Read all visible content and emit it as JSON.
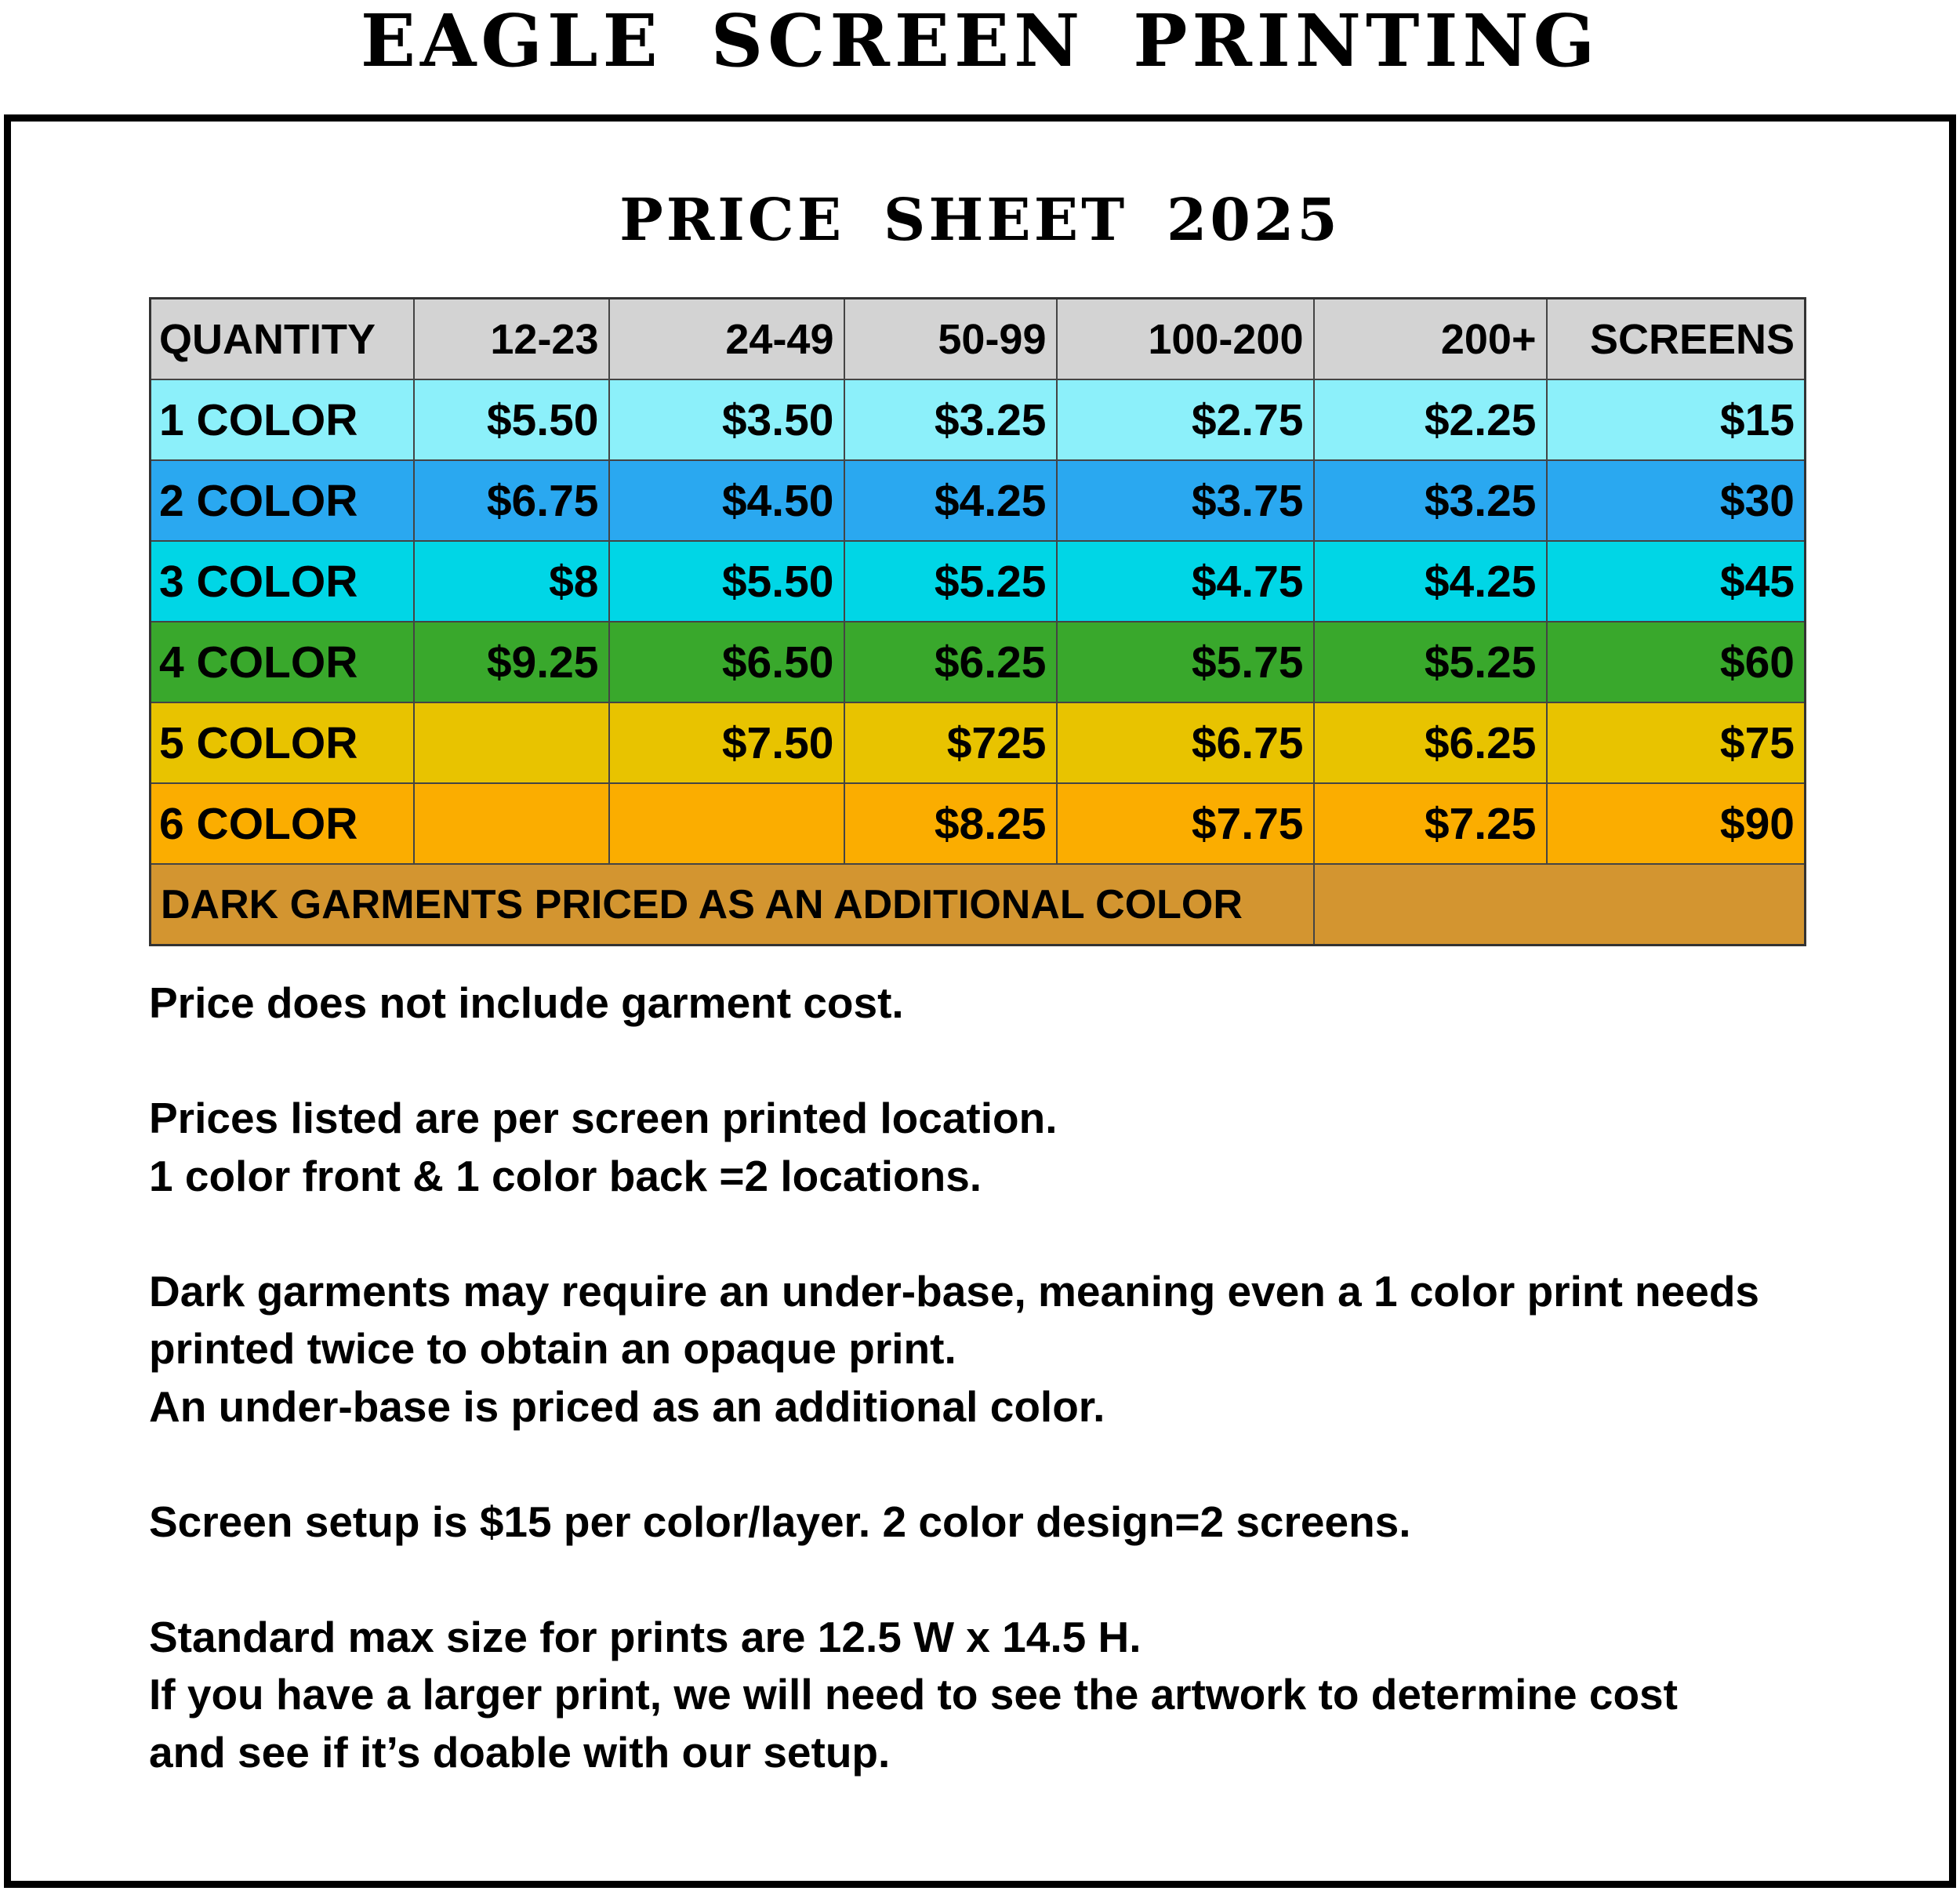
{
  "header": {
    "title": "EAGLE SCREEN PRINTING",
    "subtitle": "PRICE SHEET 2025"
  },
  "table": {
    "columns": [
      "QUANTITY",
      "12-23",
      "24-49",
      "50-99",
      "100-200",
      "200+",
      "SCREENS"
    ],
    "rows": [
      [
        "1 COLOR",
        "$5.50",
        "$3.50",
        "$3.25",
        "$2.75",
        "$2.25",
        "$15"
      ],
      [
        "2 COLOR",
        "$6.75",
        "$4.50",
        "$4.25",
        "$3.75",
        "$3.25",
        "$30"
      ],
      [
        "3 COLOR",
        "$8",
        "$5.50",
        "$5.25",
        "$4.75",
        "$4.25",
        "$45"
      ],
      [
        "4 COLOR",
        "$9.25",
        "$6.50",
        "$6.25",
        "$5.75",
        "$5.25",
        "$60"
      ],
      [
        "5 COLOR",
        null,
        "$7.50",
        "$725",
        "$6.75",
        "$6.25",
        "$75"
      ],
      [
        "6 COLOR",
        null,
        null,
        "$8.25",
        "$7.75",
        "$7.25",
        "$90"
      ]
    ],
    "footer": "DARK GARMENTS PRICED AS AN ADDITIONAL COLOR"
  },
  "notes": [
    [
      "Price does not include garment cost."
    ],
    [
      "Prices listed are per screen printed location.",
      "1 color front & 1 color back =2 locations."
    ],
    [
      "Dark garments may require an under-base, meaning even a 1 color print needs",
      "printed twice to obtain an opaque print.",
      "An under-base is priced as an additional color."
    ],
    [
      "Screen setup is $15 per color/layer. 2 color design=2 screens."
    ],
    [
      "Standard max size for prints are 12.5 W x 14.5 H.",
      "If you have a larger print, we will need to see the artwork to determine cost",
      "and see if it’s doable with our setup."
    ]
  ]
}
